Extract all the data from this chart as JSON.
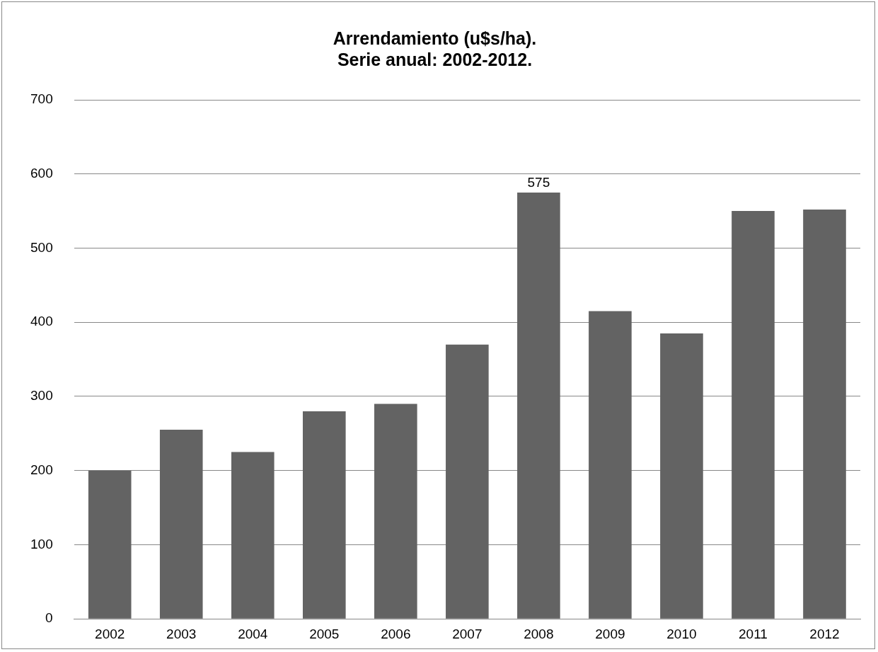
{
  "chart_data": {
    "type": "bar",
    "title": "Arrendamiento (u$s/ha).\nSerie anual: 2002-2012.",
    "categories": [
      "2002",
      "2003",
      "2004",
      "2005",
      "2006",
      "2007",
      "2008",
      "2009",
      "2010",
      "2011",
      "2012"
    ],
    "values": [
      200,
      255,
      225,
      280,
      290,
      370,
      575,
      415,
      385,
      550,
      552
    ],
    "value_labels": [
      null,
      null,
      null,
      null,
      null,
      null,
      "575",
      null,
      null,
      null,
      null
    ],
    "color": "#636363",
    "ylim": [
      0,
      700
    ],
    "yticks": [
      0,
      100,
      200,
      300,
      400,
      500,
      600,
      700
    ],
    "grid": "y",
    "legend": false
  }
}
